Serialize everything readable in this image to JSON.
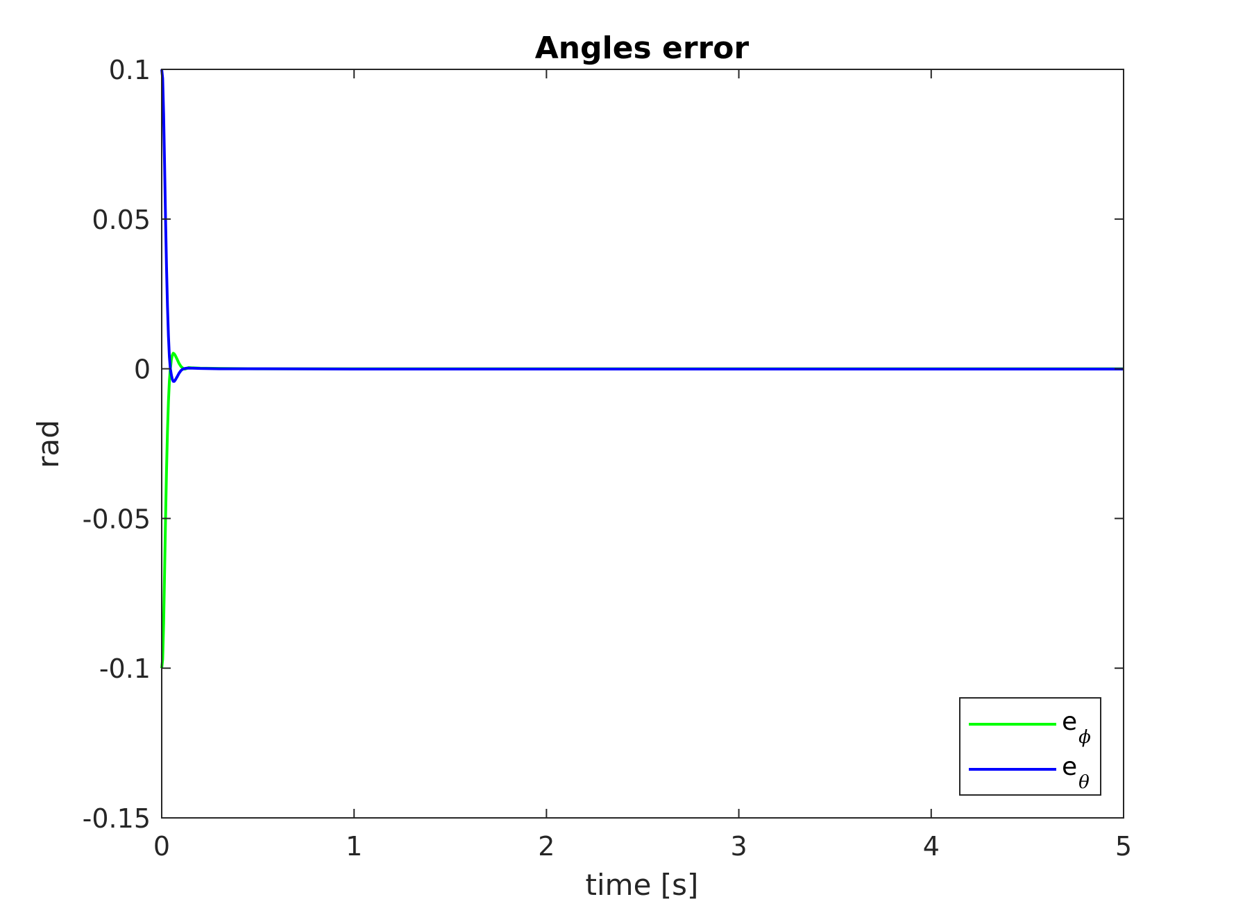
{
  "chart_data": {
    "type": "line",
    "title": "Angles error",
    "xlabel": "time [s]",
    "ylabel": "rad",
    "xlim": [
      0,
      5
    ],
    "ylim": [
      -0.15,
      0.1
    ],
    "xticks": [
      "0",
      "1",
      "2",
      "3",
      "4",
      "5"
    ],
    "yticks": [
      "0.1",
      "0.05",
      "0",
      "-0.05",
      "-0.1",
      "-0.15"
    ],
    "grid": false,
    "legend_position": "bottom-right",
    "series": [
      {
        "name_base": "e",
        "name_sub": "ϕ",
        "color": "#00ff00",
        "x": [
          0,
          0.005,
          0.01,
          0.015,
          0.02,
          0.025,
          0.03,
          0.035,
          0.04,
          0.045,
          0.05,
          0.055,
          0.06,
          0.065,
          0.07,
          0.08,
          0.09,
          0.1,
          0.11,
          0.12,
          0.13,
          0.14,
          0.16,
          0.2,
          0.3,
          0.5,
          1,
          2,
          3,
          4,
          5
        ],
        "y": [
          -0.1,
          -0.097,
          -0.085,
          -0.068,
          -0.05,
          -0.034,
          -0.021,
          -0.011,
          -0.004,
          0.0,
          0.003,
          0.0045,
          0.0052,
          0.005,
          0.0045,
          0.0032,
          0.0018,
          0.0008,
          0.0002,
          -0.0001,
          0.0001,
          0.0004,
          0.0003,
          0.0002,
          0.0001,
          0.0,
          0.0,
          0.0,
          0.0,
          0.0,
          0.0
        ]
      },
      {
        "name_base": "e",
        "name_sub": "θ",
        "color": "#0000ff",
        "x": [
          0,
          0.005,
          0.01,
          0.015,
          0.02,
          0.025,
          0.03,
          0.035,
          0.04,
          0.045,
          0.05,
          0.055,
          0.06,
          0.065,
          0.07,
          0.08,
          0.09,
          0.1,
          0.11,
          0.12,
          0.13,
          0.14,
          0.16,
          0.2,
          0.3,
          0.5,
          1,
          2,
          3,
          4,
          5
        ],
        "y": [
          0.1,
          0.097,
          0.085,
          0.068,
          0.05,
          0.034,
          0.021,
          0.011,
          0.004,
          0.0,
          -0.002,
          -0.0035,
          -0.0042,
          -0.0042,
          -0.0038,
          -0.0027,
          -0.0015,
          -0.0006,
          -0.0001,
          0.0001,
          0.0002,
          0.0002,
          0.0002,
          0.0001,
          0.0,
          0.0,
          -0.0001,
          -0.0001,
          -0.0001,
          -0.0001,
          -0.0001
        ]
      }
    ]
  }
}
